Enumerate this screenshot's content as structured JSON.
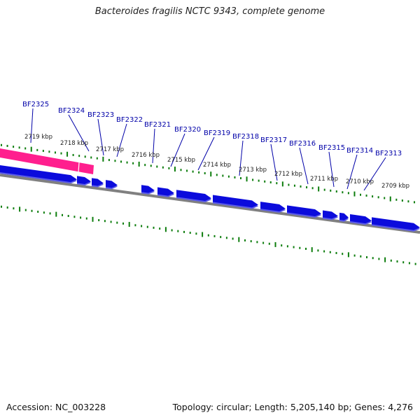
{
  "title": "Bacteroides fragilis NCTC 9343, complete genome",
  "footer": {
    "accession": "Accession: NC_003228",
    "summary": "Topology: circular; Length: 5,205,140 bp; Genes: 4,276"
  },
  "colors": {
    "gene": "#0b0bdc",
    "gene_shadow": "#5a5ae8",
    "highlight": "#ff1f8e",
    "backbone": "#808080",
    "tick": "#0d7d0d",
    "label": "#0000a8"
  },
  "kbp_ticks": [
    "2719 kbp",
    "2718 kbp",
    "2717 kbp",
    "2716 kbp",
    "2715 kbp",
    "2714 kbp",
    "2713 kbp",
    "2712 kbp",
    "2711 kbp",
    "2710 kbp",
    "2709 kbp"
  ],
  "genes": [
    {
      "id": "BF2325",
      "strand": "minus"
    },
    {
      "id": "BF2324",
      "strand": "minus"
    },
    {
      "id": "BF2323",
      "strand": "minus"
    },
    {
      "id": "BF2322",
      "strand": "minus"
    },
    {
      "id": "BF2321",
      "strand": "minus"
    },
    {
      "id": "BF2320",
      "strand": "minus"
    },
    {
      "id": "BF2319",
      "strand": "minus"
    },
    {
      "id": "BF2318",
      "strand": "minus"
    },
    {
      "id": "BF2317",
      "strand": "minus"
    },
    {
      "id": "BF2316",
      "strand": "minus"
    },
    {
      "id": "BF2315",
      "strand": "minus"
    },
    {
      "id": "BF2314",
      "strand": "minus"
    },
    {
      "id": "BF2313",
      "strand": "minus"
    }
  ]
}
